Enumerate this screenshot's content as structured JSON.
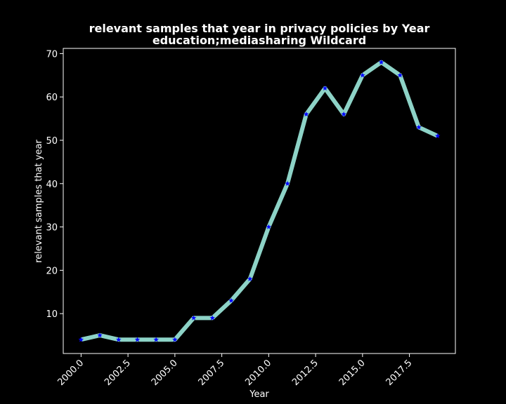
{
  "chart_data": {
    "type": "line",
    "title": "relevant samples that year in privacy policies by Year",
    "subtitle": "education;mediasharing Wildcard",
    "xlabel": "Year",
    "ylabel": "relevant samples that year",
    "xlim": [
      1999.05,
      2019.95
    ],
    "ylim": [
      0.8,
      71.2
    ],
    "x_ticks": [
      2000.0,
      2002.5,
      2005.0,
      2007.5,
      2010.0,
      2012.5,
      2015.0,
      2017.5
    ],
    "x_tick_labels": [
      "2000.0",
      "2002.5",
      "2005.0",
      "2007.5",
      "2010.0",
      "2012.5",
      "2015.0",
      "2017.5"
    ],
    "y_ticks": [
      10,
      20,
      30,
      40,
      50,
      60,
      70
    ],
    "y_tick_labels": [
      "10",
      "20",
      "30",
      "40",
      "50",
      "60",
      "70"
    ],
    "grid": false,
    "colors": {
      "background": "#000000",
      "line": "#8dd3c7",
      "marker": "#0000ff",
      "axes": "#ffffff",
      "text": "#ffffff"
    },
    "series": [
      {
        "x": [
          2000,
          2001,
          2002,
          2003,
          2004,
          2005,
          2006,
          2007,
          2008,
          2009,
          2010,
          2011,
          2012,
          2013,
          2014,
          2015,
          2016,
          2017,
          2018,
          2019
        ],
        "values": [
          4,
          5,
          4,
          4,
          4,
          4,
          9,
          9,
          13,
          18,
          30,
          40,
          56,
          62,
          56,
          65,
          68,
          65,
          53,
          51
        ]
      }
    ]
  }
}
